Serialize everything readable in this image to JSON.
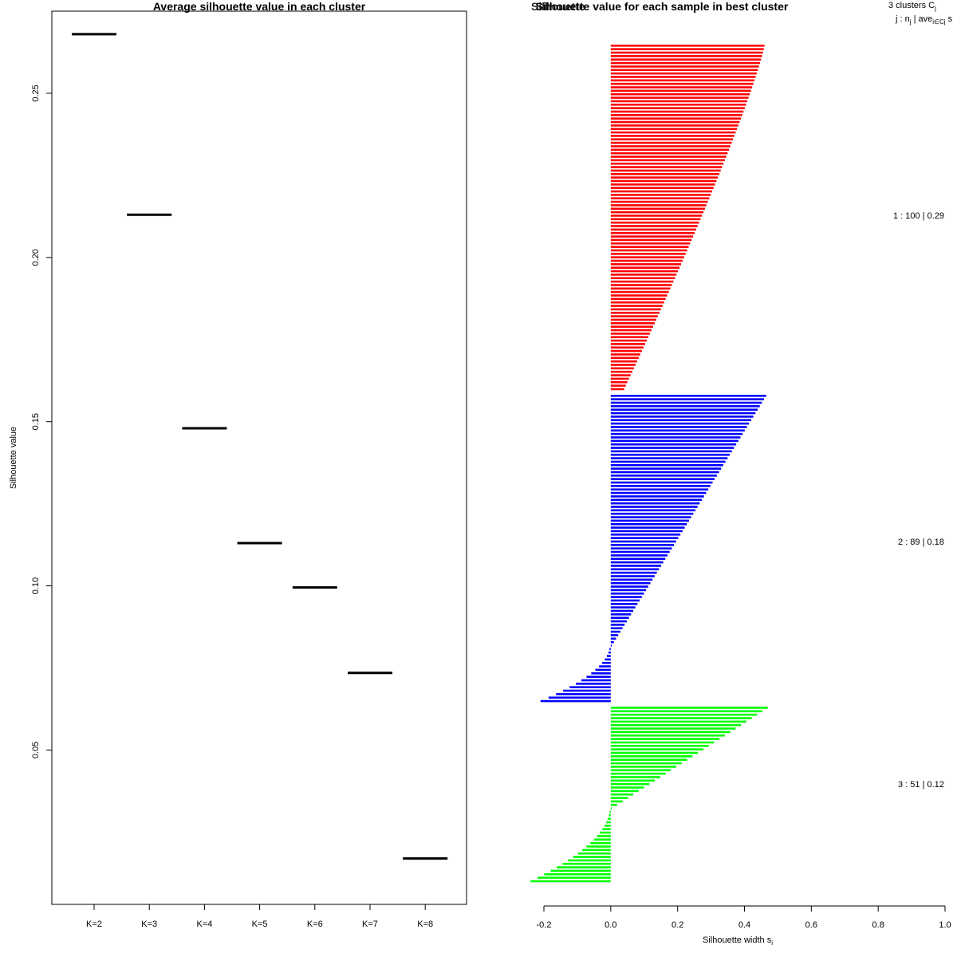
{
  "chart_data": [
    {
      "type": "scatter",
      "title": "Average silhouette value in each cluster",
      "xlabel": "",
      "ylabel": "Silhouette value",
      "categories": [
        "K=2",
        "K=3",
        "K=4",
        "K=5",
        "K=6",
        "K=7",
        "K=8"
      ],
      "values": [
        0.268,
        0.213,
        0.148,
        0.113,
        0.0995,
        0.0735,
        0.017
      ],
      "yticks": [
        "0.05",
        "0.10",
        "0.15",
        "0.20",
        "0.25"
      ],
      "ylim": [
        0.003,
        0.275
      ],
      "grid": false
    },
    {
      "type": "bar",
      "orientation": "horizontal",
      "title": "Silhouette value for each sample in best cluster",
      "overlay_text": "Silhouette",
      "xlabel": "Silhouette width s",
      "xlabel_subscript": "i",
      "xlim": [
        -0.2,
        1.0
      ],
      "xticks": [
        "-0.2",
        "0.0",
        "0.2",
        "0.4",
        "0.6",
        "0.8",
        "1.0"
      ],
      "legend_header": {
        "line1": "3 clusters C",
        "line1_sub": "j",
        "line2": "j :  n",
        "line2_sub": "j",
        "line2_rest": " | ave",
        "line2_sub2": "i∈Cj",
        "line2_end": " s"
      },
      "series": [
        {
          "name": "1 :  100  |  0.29",
          "color": "#ff0000",
          "n": 100,
          "max": 0.46,
          "min": 0.04,
          "first_label_row": 0
        },
        {
          "name": "2 :  89  |  0.18",
          "color": "#0000ff",
          "n": 89,
          "max": 0.465,
          "min": -0.21,
          "positive": 73
        },
        {
          "name": "3 :  51  |  0.12",
          "color": "#00ff00",
          "n": 51,
          "max": 0.47,
          "min": -0.24,
          "positive": 30
        }
      ]
    }
  ]
}
